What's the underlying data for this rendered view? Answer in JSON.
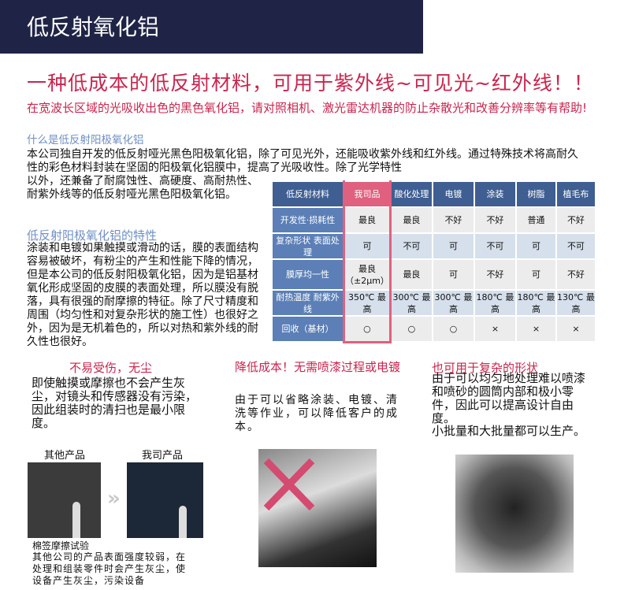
{
  "header": {
    "title": "低反射氧化铝"
  },
  "headline": "一种低成本的低反射材料，可用于紫外线~可见光~红外线！！",
  "subtitle": "在宽波长区域的光吸收出色的黑色氧化铝，请对照相机、激光雷达机器的防止杂散光和改善分辨率等有帮助!",
  "section1": {
    "heading": "什么是低反射阳极氧化铝",
    "text_wide": "本公司独自开发的低反射哑光黑色阳极氧化铝，除了可见光外，还能吸收紫外线和红外线。通过特殊技术将高耐久性的彩色材料封装在坚固的阳极氧化铝膜中，提高了光吸收性。除了光学特性",
    "text_narrow": "以外，还兼备了耐腐蚀性、高硬度、高耐热性、耐紫外线等的低反射哑光黑色阳极氧化铝。"
  },
  "section2": {
    "heading": "低反射阳极氧化铝的特性",
    "text": "涂装和电镀如果触摸或滑动的话，膜的表面结构容易被破坏，有粉尘的产生和性能下降的情况，但是本公司的低反射阳极氧化铝，因为是铝基材氧化形成坚固的皮膜的表面处理，所以膜没有脱落，具有很强的耐摩擦的特征。除了尺寸精度和周围（均匀性和对复杂形状的施工性）也很好之外，因为是无机着色的，所以对热和紫外线的耐久性也很好。"
  },
  "table": {
    "headers": [
      "低反射材料",
      "我司品",
      "酸化处理",
      "电镀",
      "涂装",
      "树脂",
      "植毛布"
    ],
    "rows": [
      {
        "label": "开发性·损耗性",
        "cells": [
          "最良",
          "最良",
          "不好",
          "不好",
          "普通",
          "不好"
        ]
      },
      {
        "label": "复杂形状 表面处理",
        "cells": [
          "可",
          "不可",
          "可",
          "不可",
          "可",
          "不可"
        ]
      },
      {
        "label": "膜厚均一性",
        "cells": [
          "最良（±2μm）",
          "最良",
          "可",
          "不好",
          "可",
          "不好"
        ]
      },
      {
        "label": "耐热温度 耐紫外线",
        "cells": [
          "350℃ 最高",
          "300℃ 最高",
          "300℃ 最高",
          "180℃ 最高",
          "180℃ 最高",
          "130℃ 最高"
        ]
      },
      {
        "label": "回收（基材）",
        "cells": [
          "○",
          "○",
          "○",
          "×",
          "×",
          "×"
        ]
      }
    ]
  },
  "features": [
    {
      "title": "不易受伤，无尘",
      "text": "即使触摸或摩擦也不会产生灰尘，对镜头和传感器没有污染，因此组装时的清扫也是最小限度。"
    },
    {
      "title": "降低成本！无需喷漆过程或电镀",
      "text": "由于可以省略涂装、电镀、清洗等作业，可以降低客户的成本。"
    },
    {
      "title": "也可用于复杂的形状",
      "text": "由于可以均匀地处理难以喷漆和喷砂的圆筒内部和极小零件，因此可以提高设计自由度。",
      "text2": "小批量和大批量都可以生产。"
    }
  ],
  "comparison": {
    "other_label": "其他产品",
    "ours_label": "我司产品",
    "caption": "棉签摩擦试验",
    "text": "其他公司的产品表面强度较弱，在处理和组装零件时会产生灰尘，使设备产生灰尘，污染设备"
  },
  "colors": {
    "header_bg": "#1f2446",
    "accent": "#c8254e",
    "table_header": "#3f5e91",
    "highlight": "#e0607f"
  }
}
